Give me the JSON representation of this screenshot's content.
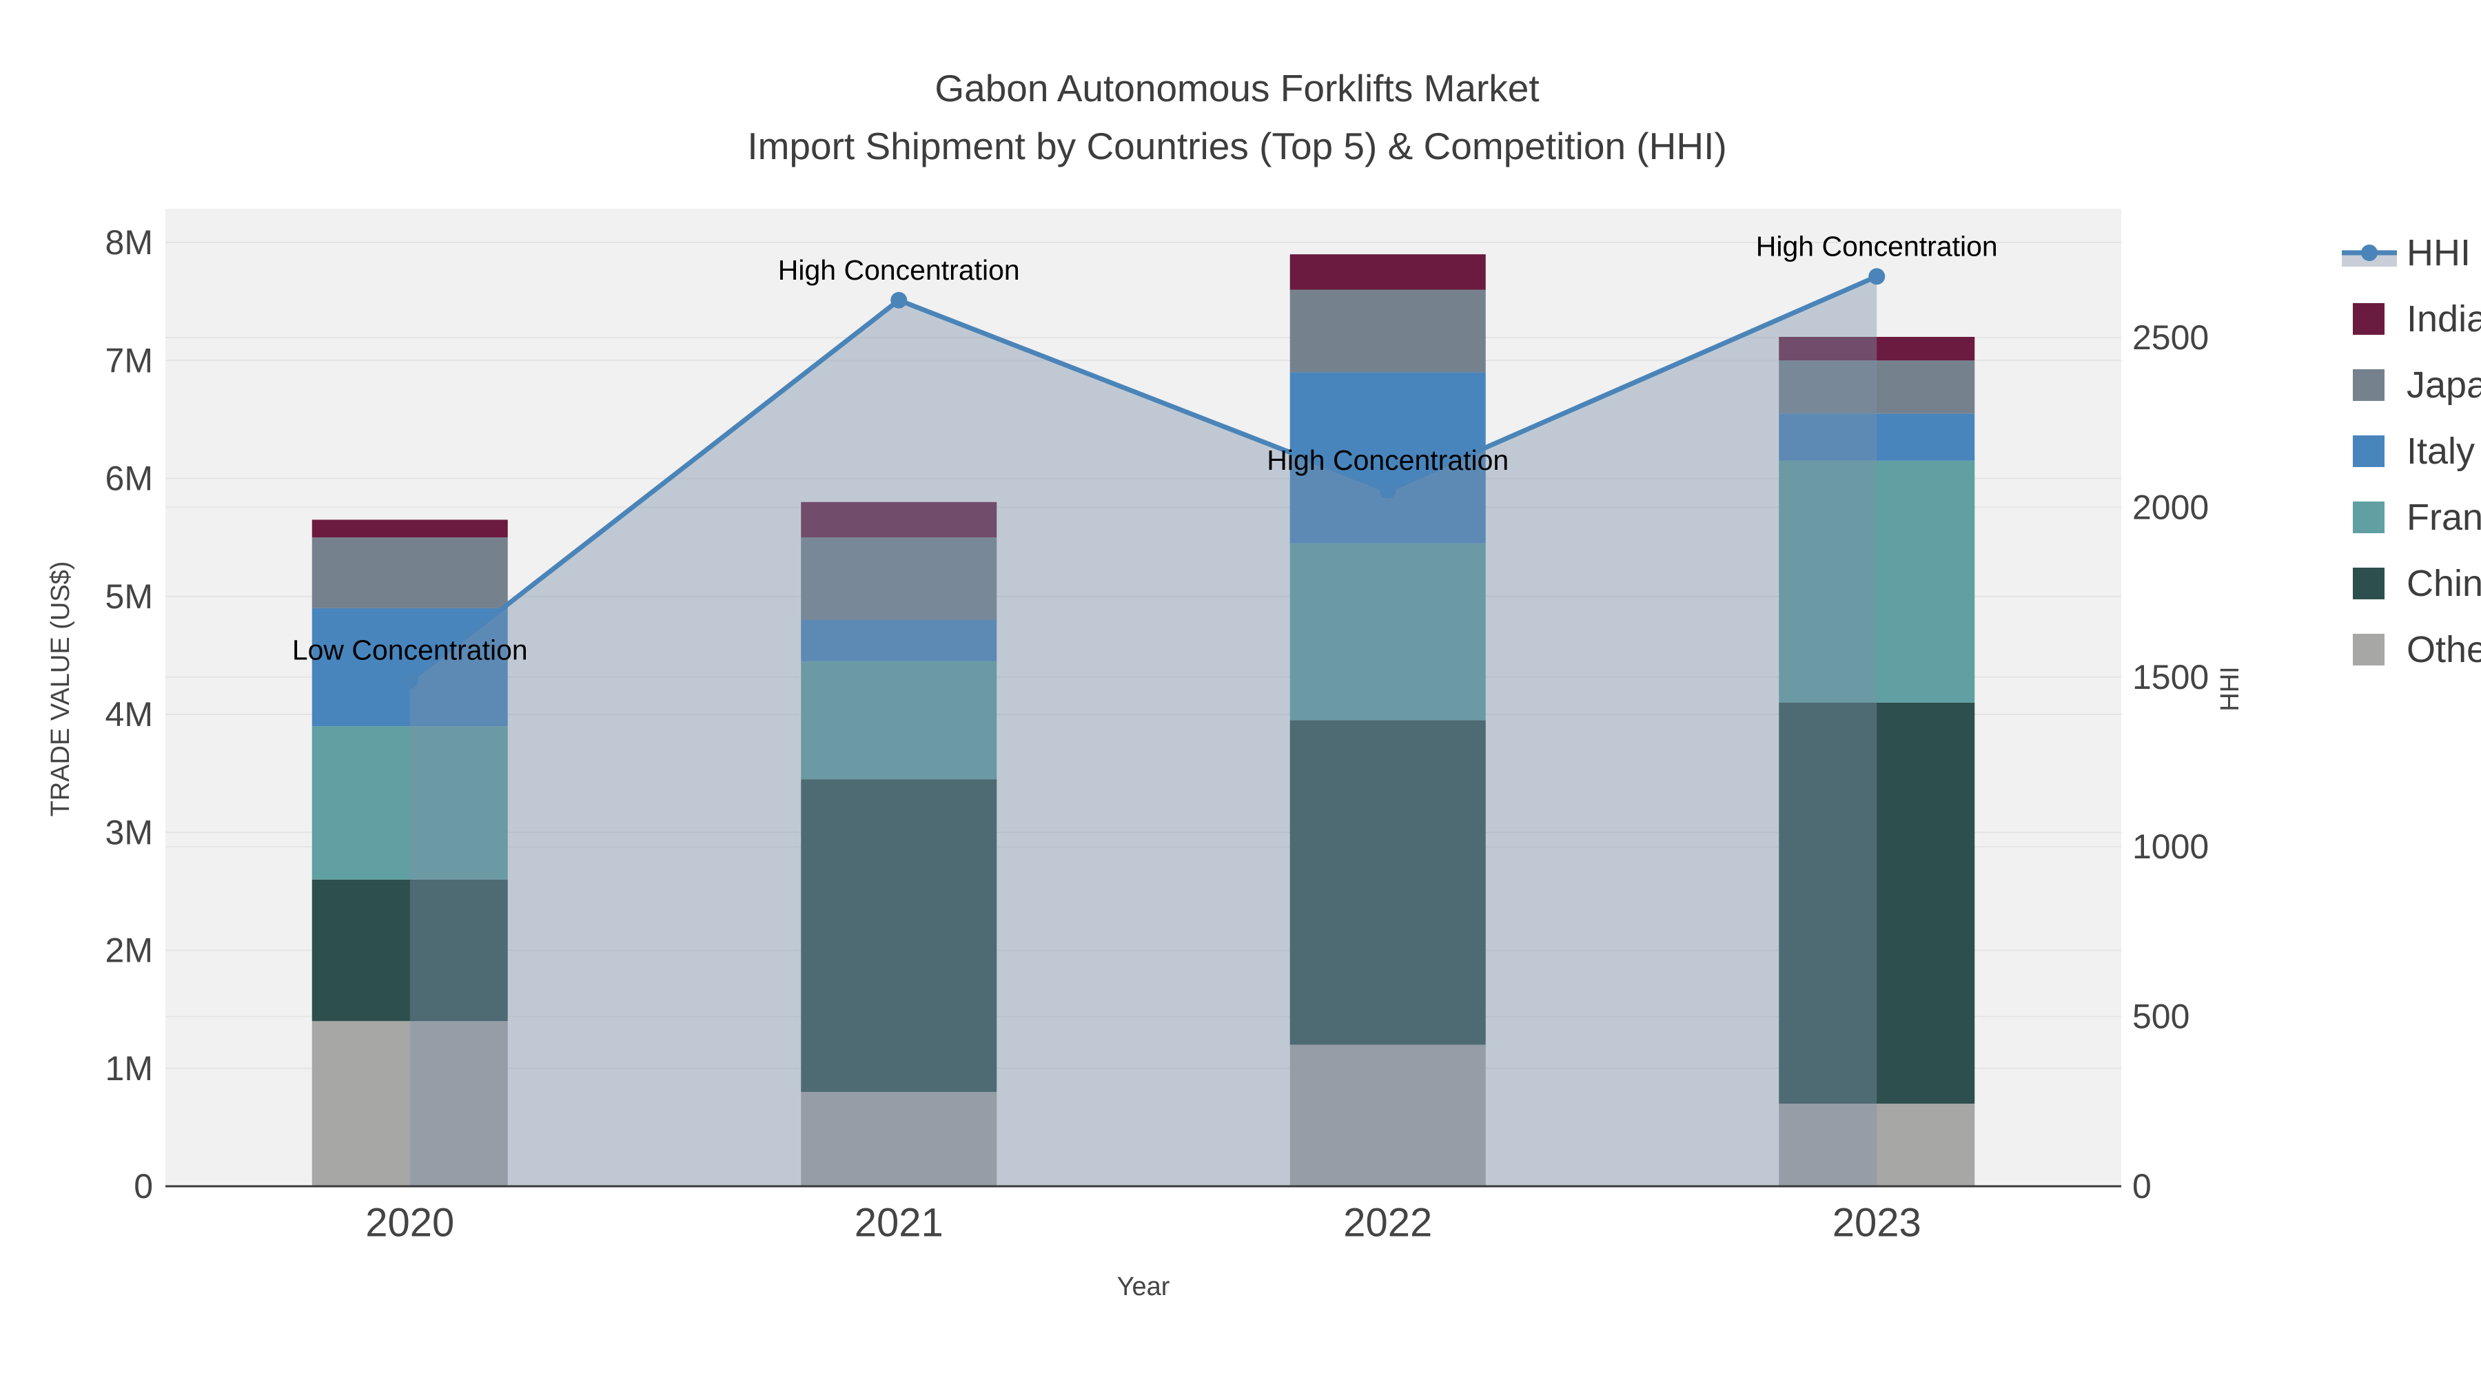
{
  "title": {
    "line1": "Gabon Autonomous Forklifts Market",
    "line2": "Import Shipment by Countries (Top 5) & Competition (HHI)"
  },
  "axes": {
    "x": {
      "title": "Year",
      "categories": [
        "2020",
        "2021",
        "2022",
        "2023"
      ]
    },
    "y_left": {
      "title": "TRADE VALUE (US$)",
      "tick_labels": [
        "0",
        "1M",
        "2M",
        "3M",
        "4M",
        "5M",
        "6M",
        "7M",
        "8M"
      ]
    },
    "y_right": {
      "title": "HHI",
      "tick_labels": [
        "0",
        "500",
        "1000",
        "1500",
        "2000",
        "2500"
      ]
    }
  },
  "legend": {
    "items": [
      {
        "label": "HHI",
        "type": "line",
        "color": "#4a84b8",
        "band_color": "#c9ced8"
      },
      {
        "label": "India",
        "type": "swatch",
        "color": "#6b1b3f"
      },
      {
        "label": "Japan",
        "type": "swatch",
        "color": "#75828e"
      },
      {
        "label": "Italy",
        "type": "swatch",
        "color": "#4885bd"
      },
      {
        "label": "France",
        "type": "swatch",
        "color": "#60a0a2"
      },
      {
        "label": "China",
        "type": "swatch",
        "color": "#2d4f4d"
      },
      {
        "label": "Others",
        "type": "swatch",
        "color": "#a7a7a5"
      }
    ]
  },
  "chart_data": {
    "type": "bar",
    "subtype": "stacked bars + line on secondary axis",
    "categories": [
      "2020",
      "2021",
      "2022",
      "2023"
    ],
    "bar_value_unit": "trade value in millions of US$",
    "series": [
      {
        "name": "Others",
        "color": "#a7a7a5",
        "values": [
          1.4,
          0.8,
          1.2,
          0.7
        ]
      },
      {
        "name": "China",
        "color": "#2d4f4d",
        "values": [
          1.2,
          2.65,
          2.75,
          3.4
        ]
      },
      {
        "name": "France",
        "color": "#60a0a2",
        "values": [
          1.3,
          1.0,
          1.5,
          2.05
        ]
      },
      {
        "name": "Italy",
        "color": "#4885bd",
        "values": [
          1.0,
          0.35,
          1.45,
          0.4
        ]
      },
      {
        "name": "Japan",
        "color": "#75828e",
        "values": [
          0.6,
          0.7,
          0.7,
          0.45
        ]
      },
      {
        "name": "India",
        "color": "#6b1b3f",
        "values": [
          0.15,
          0.3,
          0.3,
          0.2
        ]
      }
    ],
    "stack_order": "bottom to top as listed",
    "bar_totals_M": [
      5.65,
      5.8,
      7.9,
      7.2
    ],
    "line_series": {
      "name": "HHI",
      "color": "#4a84b8",
      "area_fill": "rgba(125,145,170,0.42)",
      "values": [
        1490,
        2610,
        2050,
        2680
      ]
    },
    "annotations": [
      {
        "category": "2020",
        "text": "Low Concentration"
      },
      {
        "category": "2021",
        "text": "High Concentration"
      },
      {
        "category": "2022",
        "text": "High Concentration"
      },
      {
        "category": "2023",
        "text": "High Concentration"
      }
    ],
    "title": "Gabon Autonomous Forklifts Market — Import Shipment by Countries (Top 5) & Competition (HHI)",
    "xlabel": "Year",
    "ylabel_left": "TRADE VALUE (US$)",
    "ylabel_right": "HHI",
    "ylim_left_M": [
      0,
      8.3
    ],
    "ylim_right": [
      0,
      2880
    ],
    "grid": true,
    "legend_position": "right",
    "plot_background": "#f1f1f1"
  }
}
